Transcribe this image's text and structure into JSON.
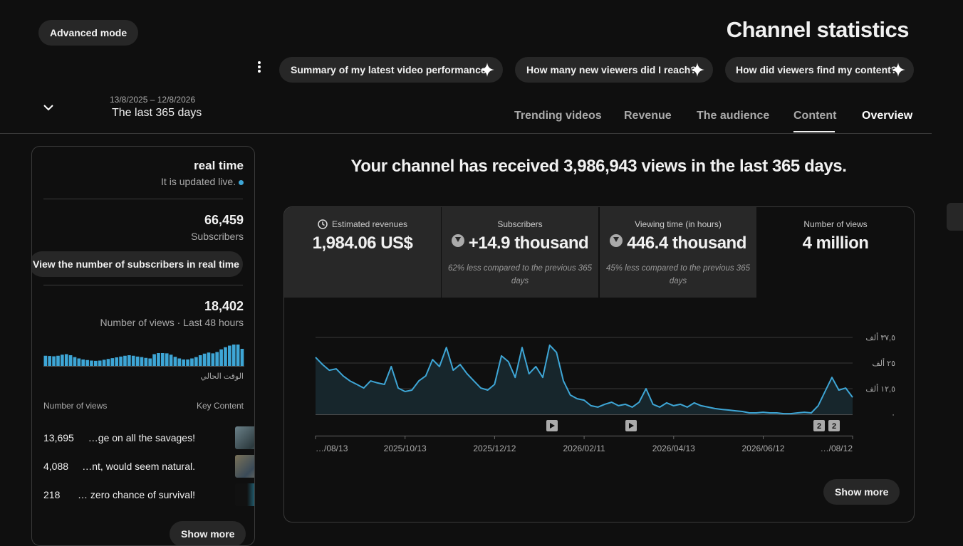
{
  "header": {
    "advanced_mode": "Advanced mode",
    "title": "Channel statistics",
    "suggestions": [
      "Summary of my latest video performance",
      "How many new viewers did I reach?",
      "How did viewers find my content?"
    ],
    "date_range": "13/8/2025 – 12/8/2026",
    "period": "The last 365 days",
    "tabs": [
      "Trending videos",
      "Revenue",
      "The audience",
      "Content",
      "Overview"
    ]
  },
  "realtime": {
    "title": "real time",
    "status": "It is updated live.",
    "subscribers": "66,459",
    "subscribers_label": "Subscribers",
    "subscribers_button": "View the number of subscribers in real time",
    "views": "18,402",
    "views_label": "Number of views · Last 48 hours",
    "chart": {
      "type": "bar",
      "color": "#3ea6d6",
      "values": [
        380,
        370,
        360,
        380,
        420,
        440,
        400,
        330,
        280,
        240,
        220,
        200,
        190,
        200,
        230,
        260,
        290,
        320,
        350,
        380,
        400,
        380,
        350,
        330,
        300,
        280,
        440,
        480,
        480,
        470,
        420,
        340,
        280,
        240,
        240,
        280,
        330,
        400,
        460,
        500,
        470,
        520,
        620,
        700,
        760,
        800,
        800,
        640
      ]
    },
    "now_label": "الوقت الحالي",
    "column_views": "Number of views",
    "column_content": "Key Content",
    "videos": [
      {
        "views": "13,695",
        "title": "…ge on all the savages!"
      },
      {
        "views": "4,088",
        "title": "…nt, would seem natural."
      },
      {
        "views": "218",
        "title": "… zero chance of survival!"
      }
    ],
    "show_more": "Show more"
  },
  "main": {
    "headline": "Your channel has received 3,986,943 views in the last 365 days.",
    "metrics": [
      {
        "label": "Estimated revenues",
        "value": "1,984.06 US$"
      },
      {
        "label": "Subscribers",
        "value": "+14.9 thousand",
        "note": "62% less compared to the previous 365 days"
      },
      {
        "label": "Viewing time (in hours)",
        "value": "446.4 thousand",
        "note": "45% less compared to the previous 365 days"
      },
      {
        "label": "Number of views",
        "value": "4 million"
      }
    ],
    "chart": {
      "type": "line",
      "color": "#3ea6d6",
      "ylim": [
        0,
        37500
      ],
      "yticks": [
        {
          "value": 0,
          "label": "٠"
        },
        {
          "value": 12500,
          "label": "١٢,٥ ألف"
        },
        {
          "value": 25000,
          "label": "٢٥ ألف"
        },
        {
          "value": 37500,
          "label": "٣٧,٥ ألف"
        }
      ],
      "xtick_labels": [
        "…/08/13",
        "2025/10/13",
        "2025/12/12",
        "2026/02/11",
        "2026/04/13",
        "2026/06/12",
        "…/08/12"
      ],
      "values": [
        27800,
        24300,
        21500,
        22200,
        18700,
        16300,
        14600,
        12800,
        16300,
        15300,
        14600,
        23300,
        12800,
        11100,
        11800,
        16300,
        18700,
        26700,
        23300,
        32600,
        21500,
        24300,
        19800,
        16300,
        12800,
        11800,
        14600,
        28500,
        25700,
        18000,
        32600,
        19800,
        23300,
        18000,
        33700,
        30200,
        16300,
        9400,
        7600,
        6900,
        4200,
        3500,
        4900,
        5900,
        4200,
        4900,
        3500,
        5900,
        12500,
        4900,
        3500,
        5600,
        4200,
        4900,
        3500,
        5600,
        4200,
        3500,
        2800,
        2400,
        2100,
        1700,
        1400,
        700,
        700,
        1000,
        700,
        700,
        300,
        300,
        700,
        1000,
        700,
        4200,
        11100,
        18000,
        11800,
        12800,
        8300
      ],
      "markers": [
        "2",
        "2"
      ]
    },
    "show_more": "Show more"
  }
}
